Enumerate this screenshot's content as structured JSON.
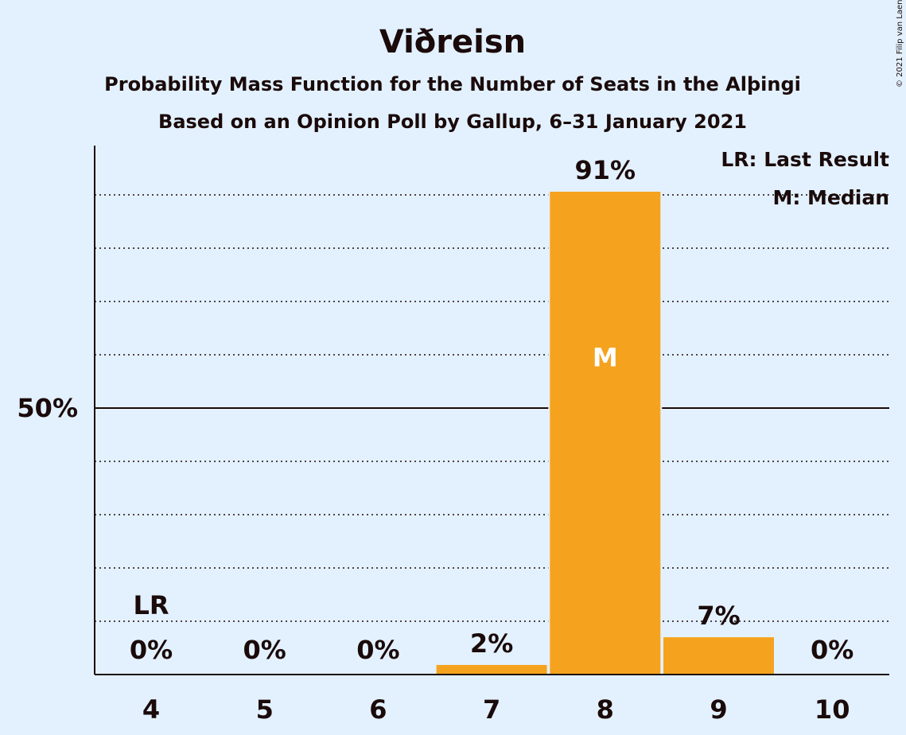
{
  "header": {
    "title": "Viðreisn",
    "subtitle": "Probability Mass Function for the Number of Seats in the Alþingi",
    "poll_note": "Based on an Opinion Poll by Gallup, 6–31 January 2021",
    "copyright": "© 2021 Filip van Laenen"
  },
  "legend": {
    "last_result": "LR: Last Result",
    "median": "M: Median"
  },
  "colors": {
    "background": "#e3f1ff",
    "bar": "#f5a31e",
    "text": "#1a0a0a"
  },
  "chart_data": {
    "type": "bar",
    "title": "Viðreisn",
    "categories": [
      "4",
      "5",
      "6",
      "7",
      "8",
      "9",
      "10"
    ],
    "values": [
      0,
      0,
      0,
      1.8,
      90.6,
      7.0,
      0
    ],
    "value_labels": [
      "0%",
      "0%",
      "0%",
      "2%",
      "91%",
      "7%",
      "0%"
    ],
    "ylim": [
      0,
      100
    ],
    "yticks": [
      {
        "value": 50,
        "label": "50%"
      }
    ],
    "minor_gridlines": [
      10,
      20,
      30,
      40,
      60,
      70,
      80,
      90
    ],
    "last_result_category": "4",
    "last_result_marker": "LR",
    "median_category": "8",
    "median_marker": "M",
    "legend_position": "top-right",
    "grid": true
  }
}
